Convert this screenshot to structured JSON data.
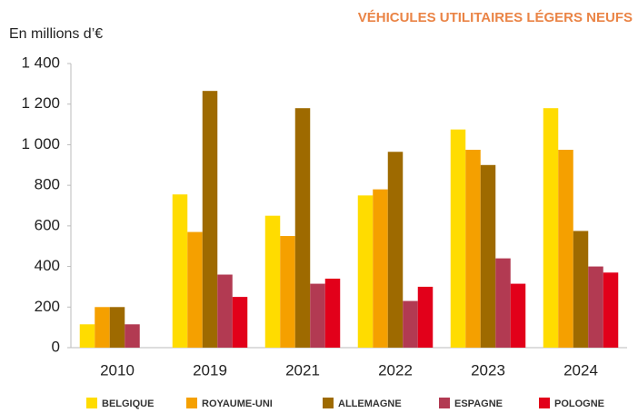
{
  "chart_data": {
    "type": "bar",
    "title": "VÉHICULES UTILITAIRES LÉGERS NEUFS",
    "y_label": "En millions d’€",
    "categories": [
      "2010",
      "2019",
      "2021",
      "2022",
      "2023",
      "2024"
    ],
    "series": [
      {
        "name": "BELGIQUE",
        "color": "#ffdc00",
        "values": [
          115,
          755,
          650,
          750,
          1075,
          1180
        ]
      },
      {
        "name": "ROYAUME-UNI",
        "color": "#f5a000",
        "values": [
          200,
          570,
          550,
          780,
          975,
          975
        ]
      },
      {
        "name": "ALLEMAGNE",
        "color": "#9e6a00",
        "values": [
          200,
          1265,
          1180,
          965,
          900,
          575
        ]
      },
      {
        "name": "ESPAGNE",
        "color": "#b23a52",
        "values": [
          115,
          360,
          315,
          230,
          440,
          400
        ]
      },
      {
        "name": "POLOGNE",
        "color": "#e2001a",
        "values": [
          null,
          250,
          340,
          300,
          315,
          370
        ]
      }
    ],
    "ylim": [
      0,
      1400
    ],
    "yticks": [
      0,
      200,
      400,
      600,
      800,
      {
        "value": 1000,
        "label": "1 000"
      },
      {
        "value": 1200,
        "label": "1 200"
      },
      {
        "value": 1400,
        "label": "1 400"
      }
    ],
    "grid": false
  }
}
